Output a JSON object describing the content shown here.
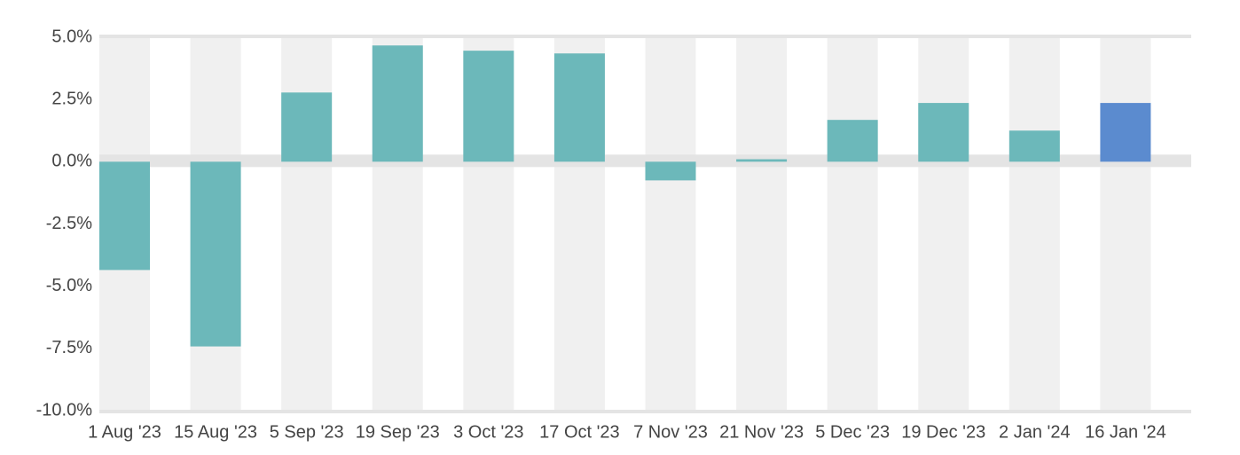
{
  "chart_data": {
    "type": "bar",
    "categories": [
      "1 Aug '23",
      "15 Aug '23",
      "5 Sep '23",
      "19 Sep '23",
      "3 Oct '23",
      "17 Oct '23",
      "7 Nov '23",
      "21 Nov '23",
      "5 Dec '23",
      "19 Dec '23",
      "2 Jan '24",
      "16 Jan '24"
    ],
    "values": [
      -4.35,
      -7.42,
      2.78,
      4.67,
      4.46,
      4.35,
      -0.75,
      0.1,
      1.68,
      2.36,
      1.25,
      2.36
    ],
    "colors": [
      "#6cb8ba",
      "#6cb8ba",
      "#6cb8ba",
      "#6cb8ba",
      "#6cb8ba",
      "#6cb8ba",
      "#6cb8ba",
      "#6cb8ba",
      "#6cb8ba",
      "#6cb8ba",
      "#6cb8ba",
      "#5b8bcf"
    ],
    "ylim": [
      -10,
      5
    ],
    "yticks": [
      {
        "value": 5,
        "label": "5.0%"
      },
      {
        "value": 2.5,
        "label": "2.5%"
      },
      {
        "value": 0,
        "label": "0.0%"
      },
      {
        "value": -2.5,
        "label": "-2.5%"
      },
      {
        "value": -5,
        "label": "-5.0%"
      },
      {
        "value": -7.5,
        "label": "-7.5%"
      },
      {
        "value": -10,
        "label": "-10.0%"
      }
    ],
    "grid": false
  }
}
